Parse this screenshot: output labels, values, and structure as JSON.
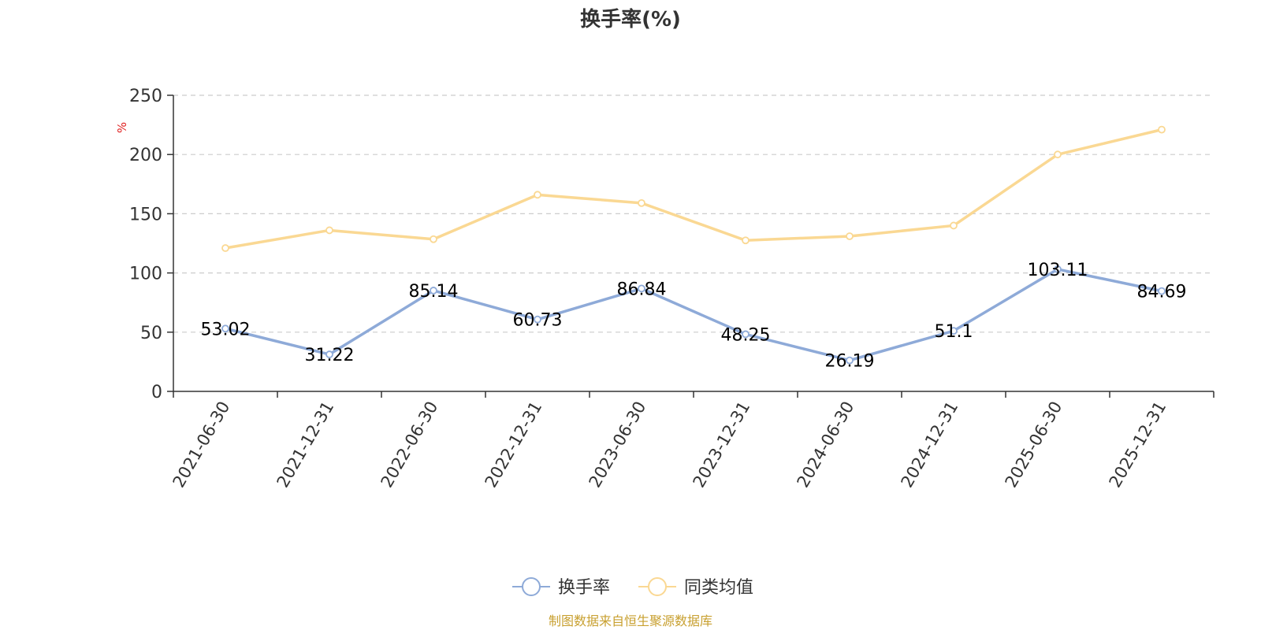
{
  "chart_data": {
    "type": "line",
    "title": "换手率(%)",
    "ylabel": "%",
    "xlabel": "",
    "ylim": [
      0,
      250
    ],
    "yticks": [
      "0",
      "50",
      "100",
      "150",
      "200",
      "250"
    ],
    "categories": [
      "2021-06-30",
      "2021-12-31",
      "2022-06-30",
      "2022-12-31",
      "2023-06-30",
      "2023-12-31",
      "2024-06-30",
      "2024-12-31",
      "2025-06-30",
      "2025-12-31"
    ],
    "series": [
      {
        "name": "换手率",
        "color": "#8eaad8",
        "values": [
          53.02,
          31.22,
          85.14,
          60.73,
          86.84,
          48.25,
          26.19,
          51.1,
          103.11,
          84.69
        ],
        "labels": [
          "53.02",
          "31.22",
          "85.14",
          "60.73",
          "86.84",
          "48.25",
          "26.19",
          "51.1",
          "103.11",
          "84.69"
        ]
      },
      {
        "name": "同类均值",
        "color": "#fad893",
        "values": [
          121,
          136,
          128.5,
          166,
          159,
          127.5,
          131,
          140,
          200,
          221
        ]
      }
    ],
    "grid": true,
    "legend": "bottom-center",
    "source": "制图数据来自恒生聚源数据库"
  },
  "colors": {
    "unit_label": "#e02020",
    "source_text": "#c8a030",
    "axis": "#333333",
    "grid": "#cccccc"
  }
}
